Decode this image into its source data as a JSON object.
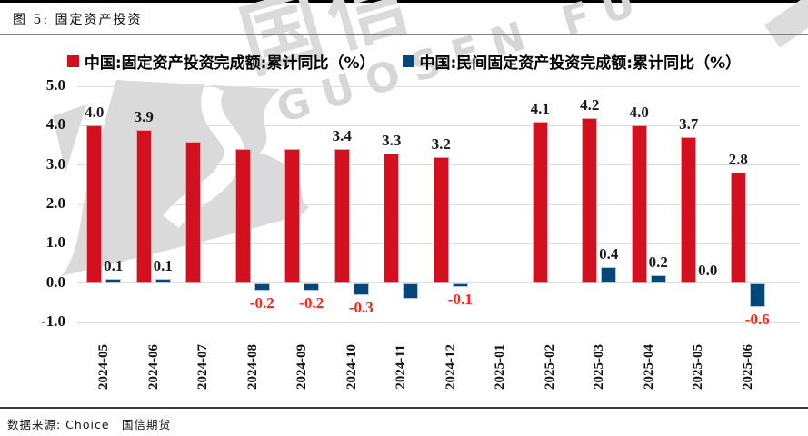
{
  "figure": {
    "number_title": "图 5: 固定资产投资",
    "source": "数据来源: Choice　国信期货",
    "watermark_cn": "国信",
    "watermark_en": "GUOSEN FU"
  },
  "chart_data": {
    "type": "bar",
    "title": "图 5: 固定资产投资",
    "categories": [
      "2024-05",
      "2024-06",
      "2024-07",
      "2024-08",
      "2024-09",
      "2024-10",
      "2024-11",
      "2024-12",
      "2025-01",
      "2025-02",
      "2025-03",
      "2025-04",
      "2025-05",
      "2025-06"
    ],
    "series": [
      {
        "name": "中国:固定资产投资完成额:累计同比（%）",
        "color": "#d2101f",
        "values": [
          4.0,
          3.9,
          3.6,
          3.4,
          3.4,
          3.4,
          3.3,
          3.2,
          null,
          4.1,
          4.2,
          4.0,
          3.7,
          2.8
        ],
        "labels": [
          "4.0",
          "3.9",
          "",
          "",
          "",
          "3.4",
          "3.3",
          "3.2",
          "",
          "4.1",
          "4.2",
          "4.0",
          "3.7",
          "2.8"
        ]
      },
      {
        "name": "中国:民间固定资产投资完成额:累计同比（%）",
        "color": "#064779",
        "values": [
          0.1,
          0.1,
          null,
          -0.2,
          -0.2,
          -0.3,
          -0.4,
          -0.1,
          null,
          null,
          0.4,
          0.2,
          0.0,
          -0.6
        ],
        "labels": [
          "0.1",
          "0.1",
          "",
          "-0.2",
          "-0.2",
          "-0.3",
          "",
          "-0.1",
          "",
          "",
          "0.4",
          "0.2",
          "0.0",
          "-0.6"
        ]
      }
    ],
    "ylim": [
      -1.0,
      5.0
    ],
    "yticks": [
      "5.0",
      "4.0",
      "3.0",
      "2.0",
      "1.0",
      "0.0",
      "-1.0"
    ],
    "xlabel": "",
    "ylabel": "",
    "grid": true,
    "legend_position": "top",
    "negative_label_color": "#ff2116"
  }
}
